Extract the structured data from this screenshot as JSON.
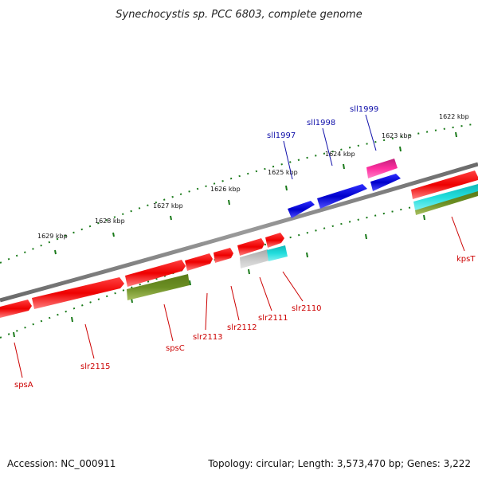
{
  "title": "Synechocystis sp. PCC 6803, complete genome",
  "accession_text": "Accession: NC_000911",
  "summary_text": "Topology: circular; Length: 3,573,470 bp; Genes: 3,222",
  "ticks": [
    "1622 kbp",
    "1623 kbp",
    "1624 kbp",
    "1625 kbp",
    "1626 kbp",
    "1627 kbp",
    "1628 kbp",
    "1629 kbp"
  ],
  "gene_labels": {
    "sll1997": "sll1997",
    "sll1998": "sll1998",
    "sll1999": "sll1999",
    "kpsT": "kpsT",
    "slr2110": "slr2110",
    "slr2111": "slr2111",
    "slr2112": "slr2112",
    "slr2113": "slr2113",
    "spsC": "spsC",
    "slr2115": "slr2115",
    "spsA": "spsA"
  },
  "colors": {
    "backbone": "#808080",
    "ruler": "#1a7a1a",
    "forward_gene": "#ee1111",
    "reverse_gene": "#1a1ad8",
    "rna_gene": "#e0288a",
    "cds_cyan": "#22cccc",
    "cds_gray": "#b8b8b8",
    "olive": "#6b8e23",
    "forward_label": "#cc0000",
    "reverse_label": "#1010aa"
  }
}
